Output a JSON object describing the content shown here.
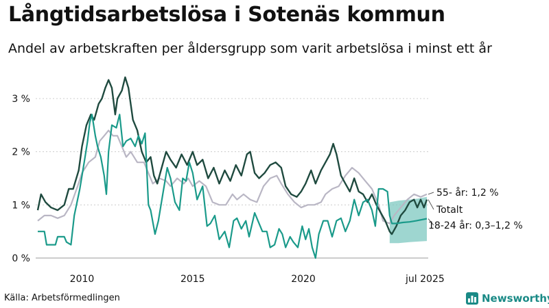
{
  "title": "Långtidsarbetslösa i Sotenäs kommun",
  "subtitle": "Andel av arbetskraften per åldersgrupp som varit arbetslösa i minst ett år",
  "source": "Källa: Arbetsförmedlingen",
  "brand": "Newsworthy",
  "colors": {
    "young": "#1a9a8a",
    "total": "#1f4a3f",
    "older": "#b9b6c4",
    "band": "#7ec8c0",
    "axis": "#cccccc"
  },
  "chart_data": {
    "type": "line",
    "x_range": [
      2008.0,
      2025.58
    ],
    "ylim": [
      0,
      3.5
    ],
    "y_ticks": [
      0,
      1,
      2,
      3
    ],
    "y_tick_labels": [
      "0 %",
      "1 %",
      "2 %",
      "3 %"
    ],
    "x_ticks": [
      2010,
      2015,
      2020,
      2025.5
    ],
    "x_tick_labels": [
      "2010",
      "2015",
      "2020",
      "jul 2025"
    ],
    "series": [
      {
        "key": "older",
        "label": "55- år: 1,2 %",
        "points": [
          [
            2008.0,
            0.7
          ],
          [
            2008.3,
            0.8
          ],
          [
            2008.6,
            0.8
          ],
          [
            2008.9,
            0.75
          ],
          [
            2009.2,
            0.8
          ],
          [
            2009.5,
            1.0
          ],
          [
            2009.8,
            1.35
          ],
          [
            2010.0,
            1.6
          ],
          [
            2010.3,
            1.8
          ],
          [
            2010.6,
            1.9
          ],
          [
            2010.8,
            2.2
          ],
          [
            2011.0,
            2.3
          ],
          [
            2011.2,
            2.4
          ],
          [
            2011.4,
            2.3
          ],
          [
            2011.6,
            2.3
          ],
          [
            2011.8,
            2.1
          ],
          [
            2012.0,
            1.9
          ],
          [
            2012.2,
            2.0
          ],
          [
            2012.5,
            1.8
          ],
          [
            2012.8,
            1.8
          ],
          [
            2013.2,
            1.4
          ],
          [
            2013.5,
            1.5
          ],
          [
            2013.8,
            1.45
          ],
          [
            2014.0,
            1.35
          ],
          [
            2014.3,
            1.5
          ],
          [
            2014.6,
            1.4
          ],
          [
            2014.8,
            1.5
          ],
          [
            2015.0,
            1.35
          ],
          [
            2015.3,
            1.45
          ],
          [
            2015.6,
            1.35
          ],
          [
            2015.9,
            1.05
          ],
          [
            2016.2,
            1.0
          ],
          [
            2016.5,
            1.0
          ],
          [
            2016.8,
            1.2
          ],
          [
            2017.0,
            1.1
          ],
          [
            2017.3,
            1.2
          ],
          [
            2017.6,
            1.1
          ],
          [
            2017.9,
            1.05
          ],
          [
            2018.2,
            1.35
          ],
          [
            2018.5,
            1.5
          ],
          [
            2018.8,
            1.55
          ],
          [
            2019.0,
            1.4
          ],
          [
            2019.3,
            1.2
          ],
          [
            2019.6,
            1.05
          ],
          [
            2019.9,
            0.95
          ],
          [
            2020.2,
            1.0
          ],
          [
            2020.5,
            1.0
          ],
          [
            2020.8,
            1.05
          ],
          [
            2021.0,
            1.2
          ],
          [
            2021.3,
            1.3
          ],
          [
            2021.6,
            1.35
          ],
          [
            2021.9,
            1.55
          ],
          [
            2022.2,
            1.7
          ],
          [
            2022.5,
            1.6
          ],
          [
            2022.8,
            1.45
          ],
          [
            2023.1,
            1.3
          ],
          [
            2023.4,
            1.0
          ],
          [
            2023.6,
            0.7
          ],
          [
            2023.9,
            0.65
          ],
          [
            2024.1,
            0.8
          ],
          [
            2024.4,
            0.95
          ],
          [
            2024.7,
            1.1
          ],
          [
            2025.0,
            1.2
          ],
          [
            2025.3,
            1.15
          ],
          [
            2025.58,
            1.2
          ]
        ]
      },
      {
        "key": "total",
        "label": "Totalt",
        "points": [
          [
            2008.0,
            0.9
          ],
          [
            2008.15,
            1.2
          ],
          [
            2008.35,
            1.05
          ],
          [
            2008.6,
            0.95
          ],
          [
            2008.9,
            0.9
          ],
          [
            2009.2,
            1.0
          ],
          [
            2009.4,
            1.3
          ],
          [
            2009.6,
            1.3
          ],
          [
            2009.85,
            1.65
          ],
          [
            2010.0,
            2.1
          ],
          [
            2010.2,
            2.5
          ],
          [
            2010.4,
            2.7
          ],
          [
            2010.55,
            2.6
          ],
          [
            2010.75,
            2.9
          ],
          [
            2010.9,
            3.0
          ],
          [
            2011.05,
            3.2
          ],
          [
            2011.2,
            3.35
          ],
          [
            2011.35,
            3.2
          ],
          [
            2011.5,
            2.7
          ],
          [
            2011.6,
            3.0
          ],
          [
            2011.8,
            3.15
          ],
          [
            2011.95,
            3.4
          ],
          [
            2012.1,
            3.2
          ],
          [
            2012.3,
            2.6
          ],
          [
            2012.5,
            2.4
          ],
          [
            2012.7,
            2.0
          ],
          [
            2012.9,
            1.8
          ],
          [
            2013.1,
            1.9
          ],
          [
            2013.25,
            1.55
          ],
          [
            2013.4,
            1.4
          ],
          [
            2013.6,
            1.7
          ],
          [
            2013.8,
            2.0
          ],
          [
            2014.0,
            1.85
          ],
          [
            2014.25,
            1.7
          ],
          [
            2014.5,
            1.95
          ],
          [
            2014.75,
            1.75
          ],
          [
            2015.0,
            2.0
          ],
          [
            2015.2,
            1.75
          ],
          [
            2015.45,
            1.85
          ],
          [
            2015.7,
            1.5
          ],
          [
            2015.95,
            1.7
          ],
          [
            2016.2,
            1.4
          ],
          [
            2016.45,
            1.65
          ],
          [
            2016.7,
            1.45
          ],
          [
            2016.95,
            1.75
          ],
          [
            2017.2,
            1.55
          ],
          [
            2017.45,
            1.95
          ],
          [
            2017.6,
            2.0
          ],
          [
            2017.8,
            1.6
          ],
          [
            2018.0,
            1.5
          ],
          [
            2018.25,
            1.6
          ],
          [
            2018.5,
            1.75
          ],
          [
            2018.75,
            1.8
          ],
          [
            2019.0,
            1.7
          ],
          [
            2019.2,
            1.35
          ],
          [
            2019.45,
            1.2
          ],
          [
            2019.7,
            1.15
          ],
          [
            2019.9,
            1.25
          ],
          [
            2020.1,
            1.4
          ],
          [
            2020.35,
            1.65
          ],
          [
            2020.55,
            1.4
          ],
          [
            2020.8,
            1.65
          ],
          [
            2021.0,
            1.8
          ],
          [
            2021.2,
            1.95
          ],
          [
            2021.35,
            2.15
          ],
          [
            2021.5,
            1.95
          ],
          [
            2021.7,
            1.55
          ],
          [
            2021.9,
            1.4
          ],
          [
            2022.1,
            1.25
          ],
          [
            2022.3,
            1.5
          ],
          [
            2022.5,
            1.25
          ],
          [
            2022.7,
            1.2
          ],
          [
            2022.9,
            1.05
          ],
          [
            2023.1,
            1.2
          ],
          [
            2023.3,
            1.0
          ],
          [
            2023.5,
            0.85
          ],
          [
            2023.7,
            0.7
          ],
          [
            2023.9,
            0.5
          ],
          [
            2024.0,
            0.45
          ],
          [
            2024.2,
            0.6
          ],
          [
            2024.4,
            0.8
          ],
          [
            2024.6,
            0.9
          ],
          [
            2024.8,
            1.05
          ],
          [
            2025.0,
            1.1
          ],
          [
            2025.15,
            0.95
          ],
          [
            2025.3,
            1.1
          ],
          [
            2025.45,
            0.95
          ],
          [
            2025.58,
            1.1
          ]
        ]
      },
      {
        "key": "young",
        "label": "18-24 år: 0,3–1,2 %",
        "points": [
          [
            2008.0,
            0.5
          ],
          [
            2008.3,
            0.5
          ],
          [
            2008.4,
            0.25
          ],
          [
            2008.8,
            0.25
          ],
          [
            2008.9,
            0.4
          ],
          [
            2009.2,
            0.4
          ],
          [
            2009.3,
            0.3
          ],
          [
            2009.5,
            0.25
          ],
          [
            2009.65,
            0.8
          ],
          [
            2009.9,
            1.3
          ],
          [
            2010.1,
            1.8
          ],
          [
            2010.25,
            2.2
          ],
          [
            2010.35,
            2.55
          ],
          [
            2010.45,
            2.7
          ],
          [
            2010.6,
            2.3
          ],
          [
            2010.7,
            2.1
          ],
          [
            2010.85,
            1.9
          ],
          [
            2011.0,
            1.55
          ],
          [
            2011.1,
            1.2
          ],
          [
            2011.2,
            2.0
          ],
          [
            2011.35,
            2.5
          ],
          [
            2011.55,
            2.45
          ],
          [
            2011.7,
            2.7
          ],
          [
            2011.85,
            2.1
          ],
          [
            2012.0,
            2.2
          ],
          [
            2012.2,
            2.25
          ],
          [
            2012.4,
            2.1
          ],
          [
            2012.55,
            2.3
          ],
          [
            2012.7,
            2.15
          ],
          [
            2012.85,
            2.35
          ],
          [
            2013.0,
            1.0
          ],
          [
            2013.1,
            0.9
          ],
          [
            2013.3,
            0.45
          ],
          [
            2013.45,
            0.7
          ],
          [
            2013.65,
            1.2
          ],
          [
            2013.85,
            1.7
          ],
          [
            2014.0,
            1.5
          ],
          [
            2014.2,
            1.05
          ],
          [
            2014.4,
            0.9
          ],
          [
            2014.55,
            1.5
          ],
          [
            2014.7,
            1.45
          ],
          [
            2014.85,
            1.8
          ],
          [
            2015.0,
            1.6
          ],
          [
            2015.2,
            1.1
          ],
          [
            2015.45,
            1.35
          ],
          [
            2015.65,
            0.6
          ],
          [
            2015.8,
            0.65
          ],
          [
            2016.0,
            0.8
          ],
          [
            2016.2,
            0.35
          ],
          [
            2016.45,
            0.5
          ],
          [
            2016.65,
            0.2
          ],
          [
            2016.85,
            0.7
          ],
          [
            2017.0,
            0.75
          ],
          [
            2017.2,
            0.55
          ],
          [
            2017.4,
            0.7
          ],
          [
            2017.55,
            0.4
          ],
          [
            2017.8,
            0.85
          ],
          [
            2017.95,
            0.7
          ],
          [
            2018.15,
            0.5
          ],
          [
            2018.35,
            0.5
          ],
          [
            2018.5,
            0.2
          ],
          [
            2018.7,
            0.25
          ],
          [
            2018.9,
            0.55
          ],
          [
            2019.05,
            0.45
          ],
          [
            2019.2,
            0.2
          ],
          [
            2019.4,
            0.4
          ],
          [
            2019.55,
            0.3
          ],
          [
            2019.75,
            0.2
          ],
          [
            2019.95,
            0.6
          ],
          [
            2020.1,
            0.35
          ],
          [
            2020.25,
            0.55
          ],
          [
            2020.4,
            0.2
          ],
          [
            2020.55,
            0.0
          ],
          [
            2020.7,
            0.45
          ],
          [
            2020.9,
            0.7
          ],
          [
            2021.1,
            0.7
          ],
          [
            2021.3,
            0.4
          ],
          [
            2021.5,
            0.7
          ],
          [
            2021.7,
            0.75
          ],
          [
            2021.9,
            0.5
          ],
          [
            2022.1,
            0.7
          ],
          [
            2022.3,
            1.1
          ],
          [
            2022.5,
            0.8
          ],
          [
            2022.7,
            1.05
          ],
          [
            2022.9,
            1.1
          ],
          [
            2023.1,
            0.9
          ],
          [
            2023.25,
            0.6
          ],
          [
            2023.4,
            1.3
          ],
          [
            2023.6,
            1.3
          ],
          [
            2023.8,
            1.25
          ],
          [
            2023.9,
            0.8
          ],
          [
            2024.0,
            0.65
          ],
          [
            2024.2,
            0.65
          ],
          [
            2024.5,
            0.67
          ],
          [
            2024.8,
            0.68
          ],
          [
            2025.1,
            0.7
          ],
          [
            2025.58,
            0.74
          ]
        ]
      }
    ],
    "band": {
      "key": "young-interval",
      "lower": [
        [
          2023.9,
          0.28
        ],
        [
          2024.3,
          0.28
        ],
        [
          2024.8,
          0.3
        ],
        [
          2025.2,
          0.31
        ],
        [
          2025.58,
          0.32
        ]
      ],
      "upper": [
        [
          2023.9,
          1.05
        ],
        [
          2024.3,
          1.08
        ],
        [
          2024.8,
          1.1
        ],
        [
          2025.2,
          1.12
        ],
        [
          2025.58,
          1.15
        ]
      ]
    }
  }
}
